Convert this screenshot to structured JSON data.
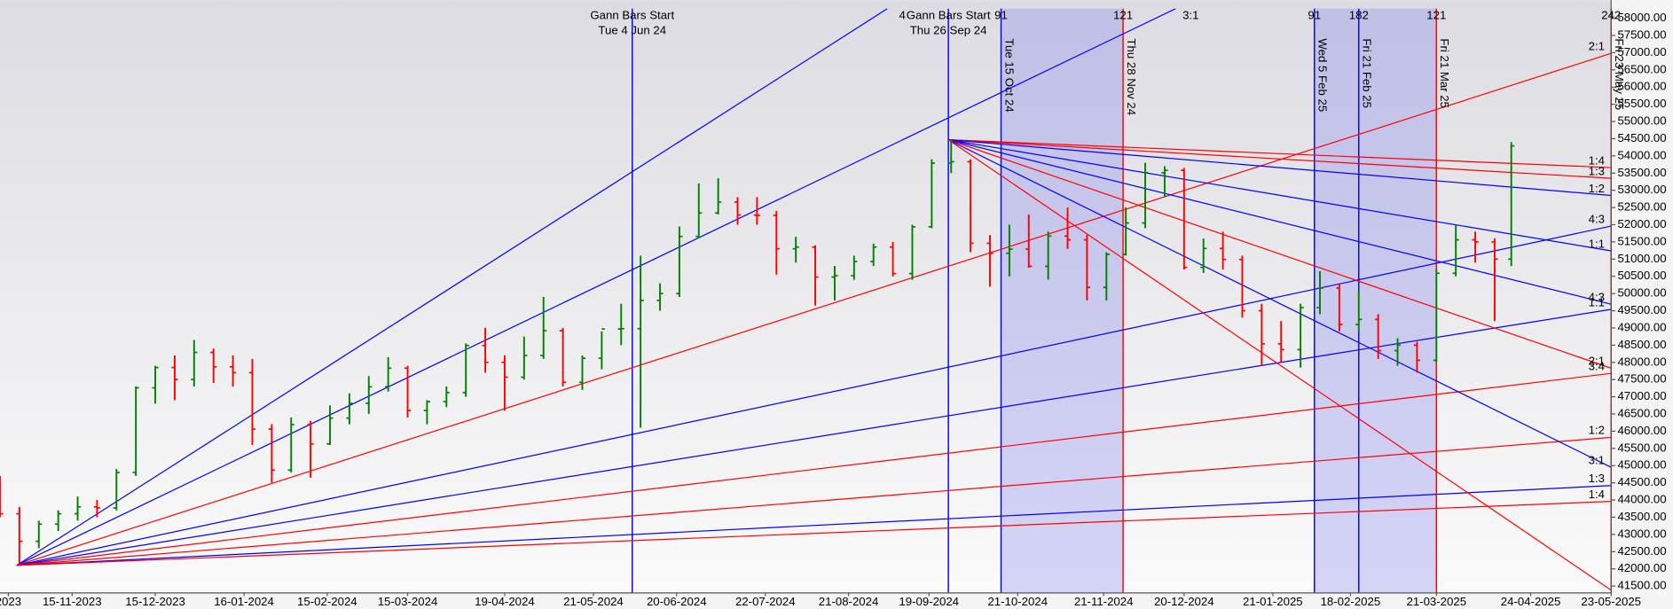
{
  "chart_data": {
    "type": "ohlc",
    "xlim": [
      "20-10-2023",
      "23-05-2025"
    ],
    "ylim": [
      41300,
      58280
    ],
    "yticks": [
      {
        "value": 41500,
        "label": "41500.00"
      },
      {
        "value": 42000,
        "label": "42000.00"
      },
      {
        "value": 42500,
        "label": "42500.00"
      },
      {
        "value": 43000,
        "label": "43000.00"
      },
      {
        "value": 43500,
        "label": "43500.00"
      },
      {
        "value": 44000,
        "label": "44000.00"
      },
      {
        "value": 44500,
        "label": "44500.00"
      },
      {
        "value": 45000,
        "label": "45000.00"
      },
      {
        "value": 45500,
        "label": "45500.00"
      },
      {
        "value": 46000,
        "label": "46000.00"
      },
      {
        "value": 46500,
        "label": "46500.00"
      },
      {
        "value": 47000,
        "label": "47000.00"
      },
      {
        "value": 47500,
        "label": "47500.00"
      },
      {
        "value": 48000,
        "label": "48000.00"
      },
      {
        "value": 48500,
        "label": "48500.00"
      },
      {
        "value": 49000,
        "label": "49000.00"
      },
      {
        "value": 49500,
        "label": "49500.00"
      },
      {
        "value": 50000,
        "label": "50000.00"
      },
      {
        "value": 50500,
        "label": "50500.00"
      },
      {
        "value": 51000,
        "label": "51000.00"
      },
      {
        "value": 51500,
        "label": "51500.00"
      },
      {
        "value": 52000,
        "label": "52000.00"
      },
      {
        "value": 52500,
        "label": "52500.00"
      },
      {
        "value": 53000,
        "label": "53000.00"
      },
      {
        "value": 53500,
        "label": "53500.00"
      },
      {
        "value": 54000,
        "label": "54000.00"
      },
      {
        "value": 54500,
        "label": "54500.00"
      },
      {
        "value": 55000,
        "label": "55000.00"
      },
      {
        "value": 55500,
        "label": "55500.00"
      },
      {
        "value": 56000,
        "label": "56000.00"
      },
      {
        "value": 56500,
        "label": "56500.00"
      },
      {
        "value": 57000,
        "label": "57000.00"
      },
      {
        "value": 57500,
        "label": "57500.00"
      },
      {
        "value": 58000,
        "label": "58000.00"
      }
    ],
    "xticks": [
      {
        "value": "23-10-2023",
        "label": "2023"
      },
      "15-11-2023",
      "15-12-2023",
      "16-01-2024",
      "15-02-2024",
      "15-03-2024",
      "19-04-2024",
      "21-05-2024",
      "20-06-2024",
      "22-07-2024",
      "21-08-2024",
      "19-09-2024",
      "21-10-2024",
      "21-11-2024",
      "20-12-2024",
      "21-01-2025",
      "18-02-2025",
      "21-03-2025",
      "24-04-2025",
      "23-05-2025"
    ],
    "up_color": "#008000",
    "down_color": "#ff0000",
    "x": [
      "20-10-2023",
      "27-10-2023",
      "03-11-2023",
      "10-11-2023",
      "17-11-2023",
      "24-11-2023",
      "01-12-2023",
      "08-12-2023",
      "15-12-2023",
      "22-12-2023",
      "29-12-2023",
      "05-01-2024",
      "12-01-2024",
      "19-01-2024",
      "26-01-2024",
      "02-02-2024",
      "09-02-2024",
      "16-02-2024",
      "23-02-2024",
      "01-03-2024",
      "08-03-2024",
      "15-03-2024",
      "22-03-2024",
      "29-03-2024",
      "05-04-2024",
      "12-04-2024",
      "19-04-2024",
      "26-04-2024",
      "03-05-2024",
      "10-05-2024",
      "17-05-2024",
      "24-05-2024",
      "31-05-2024",
      "07-06-2024",
      "14-06-2024",
      "21-06-2024",
      "28-06-2024",
      "05-07-2024",
      "12-07-2024",
      "19-07-2024",
      "26-07-2024",
      "02-08-2024",
      "09-08-2024",
      "16-08-2024",
      "23-08-2024",
      "30-08-2024",
      "06-09-2024",
      "13-09-2024",
      "20-09-2024",
      "27-09-2024",
      "04-10-2024",
      "11-10-2024",
      "18-10-2024",
      "25-10-2024",
      "01-11-2024",
      "08-11-2024",
      "15-11-2024",
      "22-11-2024",
      "29-11-2024",
      "06-12-2024",
      "13-12-2024",
      "20-12-2024",
      "27-12-2024",
      "03-01-2025",
      "10-01-2025",
      "17-01-2025",
      "24-01-2025",
      "31-01-2025",
      "07-02-2025",
      "14-02-2025",
      "21-02-2025",
      "28-02-2025",
      "07-03-2025",
      "14-03-2025",
      "21-03-2025",
      "28-03-2025",
      "04-04-2025",
      "11-04-2025",
      "17-04-2025"
    ],
    "open": [
      44400,
      43600,
      42800,
      43300,
      43600,
      43800,
      43770,
      44800,
      47260,
      47850,
      47500,
      48290,
      47870,
      47700,
      46060,
      44870,
      46190,
      45630,
      46380,
      46810,
      47290,
      47830,
      46600,
      46860,
      47120,
      48490,
      48000,
      47570,
      48200,
      48920,
      47420,
      48120,
      48970,
      48980,
      49800,
      50000,
      51660,
      52340,
      52660,
      52280,
      52270,
      51300,
      51350,
      50480,
      50520,
      50930,
      51350,
      50580,
      51940,
      53790,
      53830,
      51460,
      51170,
      51290,
      50790,
      51670,
      51560,
      50180,
      51140,
      52050,
      53510,
      53580,
      50760,
      51310,
      50990,
      49500,
      48540,
      48370,
      49590,
      50160,
      49100,
      49250,
      48340,
      48500,
      48060,
      50590,
      51560,
      51500,
      51000
    ],
    "high": [
      44700,
      43800,
      43400,
      43700,
      44100,
      44000,
      44900,
      47300,
      47900,
      48200,
      48650,
      48400,
      48200,
      48100,
      46200,
      46400,
      46300,
      46750,
      47100,
      47600,
      48150,
      47900,
      46900,
      47300,
      48550,
      49000,
      48200,
      48750,
      49900,
      49000,
      48200,
      48900,
      49700,
      51100,
      50300,
      51950,
      53200,
      53350,
      52800,
      52800,
      52400,
      51650,
      51400,
      50800,
      51100,
      51450,
      51500,
      52000,
      53900,
      54470,
      53900,
      51700,
      52000,
      52300,
      51800,
      52500,
      51700,
      51200,
      52500,
      53800,
      53700,
      53650,
      51600,
      51800,
      51100,
      49700,
      49200,
      49700,
      50650,
      50300,
      50100,
      49400,
      48700,
      48600,
      50700,
      52000,
      51800,
      51600,
      54400
    ],
    "low": [
      43500,
      42100,
      42600,
      43100,
      43400,
      43500,
      43700,
      44700,
      46800,
      46900,
      47300,
      47400,
      47300,
      45600,
      44500,
      44800,
      44650,
      45600,
      46200,
      46500,
      47150,
      46400,
      46200,
      46700,
      47000,
      47700,
      46600,
      47500,
      48100,
      47300,
      47200,
      47800,
      48500,
      46100,
      49500,
      49900,
      51600,
      52300,
      52000,
      52000,
      50550,
      50900,
      49650,
      49800,
      50400,
      50800,
      50500,
      50400,
      51900,
      53500,
      51200,
      50200,
      50500,
      50750,
      50400,
      51300,
      49800,
      49800,
      51100,
      51900,
      52800,
      50700,
      50600,
      50700,
      49300,
      47900,
      48000,
      47850,
      49400,
      48900,
      48900,
      48100,
      47900,
      47700,
      48000,
      50500,
      50900,
      49200,
      50800
    ],
    "close": [
      43600,
      42800,
      43300,
      43600,
      43800,
      43770,
      44800,
      47260,
      47850,
      47500,
      48290,
      47870,
      47700,
      46060,
      44870,
      46190,
      45630,
      46380,
      46810,
      47290,
      47830,
      46600,
      46860,
      47120,
      48490,
      48000,
      47570,
      48200,
      48920,
      47420,
      48120,
      48970,
      48980,
      49800,
      50000,
      51660,
      52340,
      52660,
      52280,
      52270,
      51300,
      51350,
      50480,
      50520,
      50930,
      51350,
      50580,
      51940,
      53790,
      53830,
      51460,
      51170,
      51290,
      50790,
      51670,
      51560,
      50180,
      51140,
      52050,
      53510,
      53580,
      50760,
      51310,
      50990,
      49500,
      48540,
      48370,
      49590,
      50160,
      49100,
      49250,
      48340,
      48500,
      48060,
      50590,
      51560,
      51500,
      51000,
      54290
    ],
    "shade_color": "#8c8cf0",
    "shaded": [
      [
        "15-10-2024",
        "28-11-2024"
      ],
      [
        "05-02-2025",
        "21-03-2025"
      ]
    ],
    "vlines": [
      {
        "date": "04-06-2024",
        "color": "#0000ff",
        "title": "Gann Bars Start",
        "label": "Tue 4 Jun 24"
      },
      {
        "date": "26-09-2024",
        "color": "#0000ff",
        "title": "Gann Bars Start",
        "label": "Thu 26 Sep 24"
      },
      {
        "date": "15-10-2024",
        "color": "#0000ff",
        "label": "Tue 15 Oct 24",
        "count": "91"
      },
      {
        "date": "28-11-2024",
        "color": "#ff0000",
        "label": "Thu 28 Nov 24",
        "count": "121"
      },
      {
        "date": "05-02-2025",
        "color": "#0000ff",
        "label": "Wed 5 Feb 25",
        "count": "91"
      },
      {
        "date": "21-02-2025",
        "color": "#0000ff",
        "label": "Fri 21 Feb 25",
        "count": "182"
      },
      {
        "date": "21-03-2025",
        "color": "#ff0000",
        "label": "Fri 21 Mar 25",
        "count": "121"
      },
      {
        "date": "23-05-2025",
        "color": "#ff0000",
        "label": "Fri 23 May 25",
        "count": "242"
      }
    ],
    "fans": [
      {
        "start_date": "26-10-2023",
        "start_price": 42100,
        "lines": [
          {
            "label": "4",
            "color": "#0000ff",
            "end_date": "04-09-2024",
            "end_price": 58280
          },
          {
            "label": "3:1",
            "color": "#0000ff",
            "end_date": "17-12-2024",
            "end_price": 58280
          },
          {
            "label": "2:1",
            "color": "#ff0000",
            "end_date": "23-05-2025",
            "end_price": 56980
          },
          {
            "label": "4:3",
            "color": "#0000ff",
            "end_date": "23-05-2025",
            "end_price": 51960
          },
          {
            "label": "1:1",
            "color": "#0000ff",
            "end_date": "23-05-2025",
            "end_price": 49540
          },
          {
            "label": "3:4",
            "color": "#ff0000",
            "end_date": "23-05-2025",
            "end_price": 47680
          },
          {
            "label": "1:2",
            "color": "#ff0000",
            "end_date": "23-05-2025",
            "end_price": 45820
          },
          {
            "label": "1:3",
            "color": "#0000ff",
            "end_date": "23-05-2025",
            "end_price": 44420
          },
          {
            "label": "1:4",
            "color": "#ff0000",
            "end_date": "23-05-2025",
            "end_price": 43960
          }
        ]
      },
      {
        "start_date": "26-09-2024",
        "start_price": 54470,
        "lines": [
          {
            "label": "1:4",
            "color": "#ff0000",
            "end_date": "23-05-2025",
            "end_price": 53660
          },
          {
            "label": "1:3",
            "color": "#ff0000",
            "end_date": "23-05-2025",
            "end_price": 53350
          },
          {
            "label": "1:2",
            "color": "#0000ff",
            "end_date": "23-05-2025",
            "end_price": 52850
          },
          {
            "label": "1:1",
            "color": "#0000ff",
            "end_date": "23-05-2025",
            "end_price": 51240
          },
          {
            "label": "4:3",
            "color": "#0000ff",
            "end_date": "23-05-2025",
            "end_price": 49690
          },
          {
            "label": "2:1",
            "color": "#ff0000",
            "end_date": "23-05-2025",
            "end_price": 47830
          },
          {
            "label": "3:1",
            "color": "#0000ff",
            "end_date": "23-05-2025",
            "end_price": 44950
          },
          {
            "color": "#ff0000",
            "end_date": "23-05-2025",
            "end_price": 41380
          }
        ]
      }
    ]
  }
}
